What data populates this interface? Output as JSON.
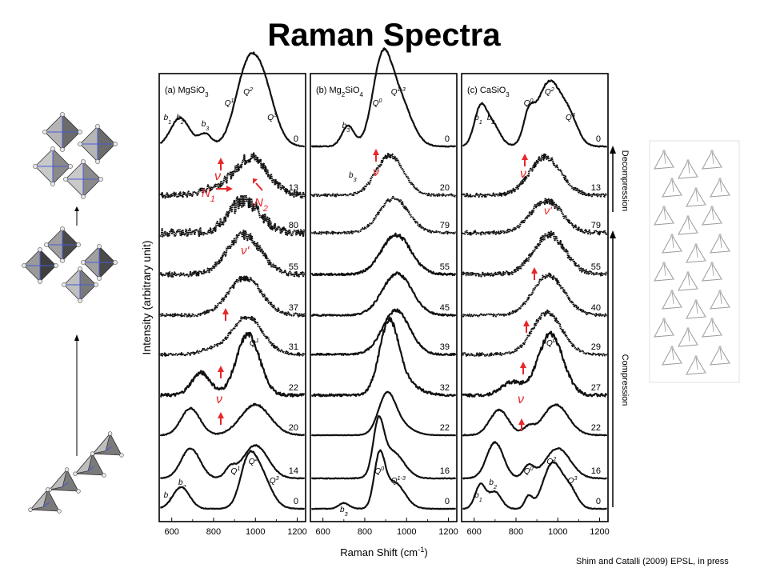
{
  "slide": {
    "title": "Raman Spectra",
    "citation": "Shim and Catalli (2009) EPSL, in press"
  },
  "figure": {
    "ylabel": "Intensity (arbitrary unit)",
    "xlabel_main": "Raman Shift (cm",
    "xlabel_sup": "-1",
    "xlabel_close": ")",
    "compression_label": "Compression",
    "decompression_label": "Decompression",
    "colors": {
      "trace": "#111111",
      "arrow": "#e8262a",
      "frame": "#000000",
      "grey_struct": "#9a9a9a"
    }
  },
  "chart_data": [
    {
      "type": "line",
      "title": "(a) MgSiO",
      "title_sub": "3",
      "xlabel": "Raman Shift (cm-1)",
      "ylabel": "Intensity (arbitrary unit)",
      "xlim": [
        540,
        1240
      ],
      "xticks": [
        600,
        800,
        1000,
        1200
      ],
      "series_labels": [
        "0",
        "13",
        "80",
        "55",
        "37",
        "31",
        "22",
        "20",
        "14",
        "0"
      ],
      "peaks_top": [
        {
          "label": "b",
          "sub": "1",
          "x": 580
        },
        {
          "label": "b",
          "sub": "2",
          "x": 640
        },
        {
          "label": "b",
          "sub": "3",
          "x": 760
        },
        {
          "label": "Q",
          "sup": "1",
          "x": 875
        },
        {
          "label": "Q",
          "sup": "2",
          "x": 965
        },
        {
          "label": "Q",
          "sup": "3",
          "x": 1080
        }
      ],
      "peaks_bottom": [
        {
          "label": "b",
          "sub": "1",
          "x": 580
        },
        {
          "label": "b",
          "sub": "2",
          "x": 650
        },
        {
          "label": "Q",
          "sup": "1",
          "x": 905
        },
        {
          "label": "Q",
          "sup": "2",
          "x": 990
        },
        {
          "label": "Q",
          "sup": "3",
          "x": 1090
        }
      ],
      "annotations": [
        {
          "label": "ν",
          "series": 1
        },
        {
          "label": "N",
          "sub": "1",
          "series": 1
        },
        {
          "label": "N",
          "sub": "2",
          "series": 1
        },
        {
          "label": "ν'",
          "series": 3
        },
        {
          "label": "Q",
          "sup": "1",
          "series": 6
        },
        {
          "label": "ν",
          "series": 7
        }
      ]
    },
    {
      "type": "line",
      "title": "(b) Mg",
      "title_sub": "2",
      "title_rest": "SiO",
      "title_sub2": "4",
      "xlabel": "Raman Shift (cm-1)",
      "xlim": [
        540,
        1240
      ],
      "xticks": [
        600,
        800,
        1000,
        1200
      ],
      "series_labels": [
        "0",
        "20",
        "79",
        "55",
        "45",
        "39",
        "32",
        "22",
        "16",
        "0"
      ],
      "peaks_top": [
        {
          "label": "Q",
          "sup": "0",
          "x": 860
        },
        {
          "label": "Q",
          "sup": "1-3",
          "x": 960
        },
        {
          "label": "b",
          "sub": "3",
          "x": 710
        }
      ],
      "peaks_bottom": [
        {
          "label": "b",
          "sub": "3",
          "x": 700
        },
        {
          "label": "Q",
          "sup": "0",
          "x": 870
        },
        {
          "label": "Q",
          "sup": "1-3",
          "x": 960
        }
      ],
      "annotations": [
        {
          "label": "b",
          "sub": "3",
          "series": 1
        },
        {
          "label": "ν",
          "series": 1
        }
      ]
    },
    {
      "type": "line",
      "title": "(c) CaSiO",
      "title_sub": "3",
      "xlabel": "Raman Shift (cm-1)",
      "xlim": [
        540,
        1240
      ],
      "xticks": [
        600,
        800,
        1000,
        1200
      ],
      "series_labels": [
        "0",
        "13",
        "79",
        "55",
        "40",
        "29",
        "27",
        "22",
        "16",
        "0"
      ],
      "peaks_top": [
        {
          "label": "b",
          "sub": "1",
          "x": 620
        },
        {
          "label": "b",
          "sub": "2",
          "x": 680
        },
        {
          "label": "Q",
          "sup": "0",
          "x": 860
        },
        {
          "label": "Q",
          "sup": "2",
          "x": 960
        },
        {
          "label": "Q",
          "sup": "3",
          "x": 1060
        }
      ],
      "peaks_bottom": [
        {
          "label": "b",
          "sub": "1",
          "x": 620
        },
        {
          "label": "b",
          "sub": "2",
          "x": 690
        },
        {
          "label": "Q",
          "sup": "0",
          "x": 860
        },
        {
          "label": "Q",
          "sup": "2",
          "x": 970
        },
        {
          "label": "Q",
          "sup": "3",
          "x": 1070
        }
      ],
      "annotations": [
        {
          "label": "ν",
          "series": 1
        },
        {
          "label": "ν'",
          "series": 2
        },
        {
          "label": "Q",
          "sup": "0",
          "series": 5
        },
        {
          "label": "ν",
          "series": 7
        }
      ]
    }
  ]
}
